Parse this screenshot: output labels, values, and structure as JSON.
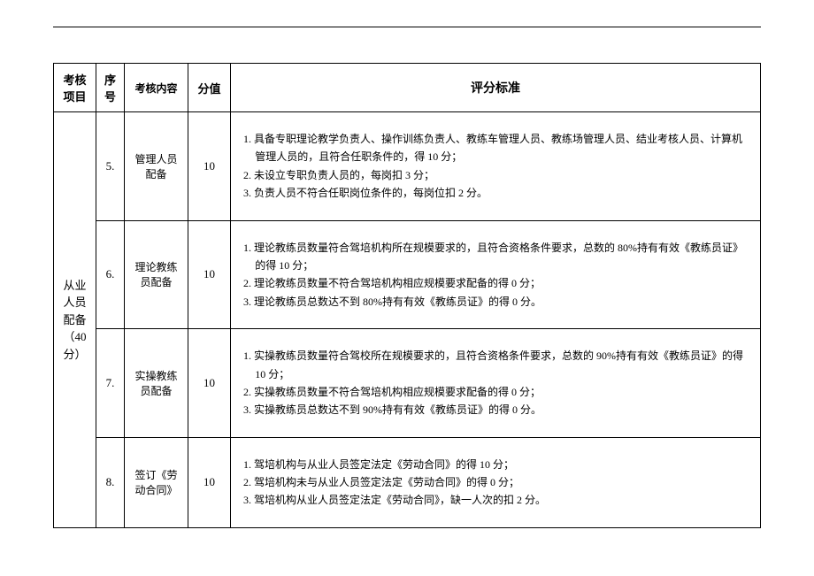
{
  "table": {
    "headers": {
      "category": "考核项目",
      "num": "序号",
      "content": "考核内容",
      "score": "分值",
      "criteria": "评分标准"
    },
    "category": {
      "label": "从业人员配备（40 分）"
    },
    "rows": [
      {
        "num": "5.",
        "content": "管理人员配备",
        "score": "10",
        "criteria": [
          "1. 具备专职理论教学负责人、操作训练负责人、教练车管理人员、教练场管理人员、结业考核人员、计算机管理人员的，且符合任职条件的，得 10 分；",
          "2. 未设立专职负责人员的，每岗扣 3 分；",
          "3. 负责人员不符合任职岗位条件的，每岗位扣 2 分。"
        ]
      },
      {
        "num": "6.",
        "content": "理论教练员配备",
        "score": "10",
        "criteria": [
          "1. 理论教练员数量符合驾培机构所在规模要求的，且符合资格条件要求，总数的 80%持有有效《教练员证》的得 10 分；",
          "2. 理论教练员数量不符合驾培机构相应规模要求配备的得 0 分；",
          "3. 理论教练员总数达不到 80%持有有效《教练员证》的得 0 分。"
        ]
      },
      {
        "num": "7.",
        "content": "实操教练员配备",
        "score": "10",
        "criteria": [
          "1. 实操教练员数量符合驾校所在规模要求的，且符合资格条件要求，总数的 90%持有有效《教练员证》的得 10 分；",
          "2. 实操教练员数量不符合驾培机构相应规模要求配备的得 0 分；",
          "3. 实操教练员总数达不到 90%持有有效《教练员证》的得 0 分。"
        ]
      },
      {
        "num": "8.",
        "content": "签订《劳动合同》",
        "score": "10",
        "criteria": [
          "1. 驾培机构与从业人员签定法定《劳动合同》的得 10 分；",
          "2. 驾培机构未与从业人员签定法定《劳动合同》的得 0 分；",
          "3. 驾培机构从业人员签定法定《劳动合同》，缺一人次的扣 2 分。"
        ]
      }
    ]
  }
}
